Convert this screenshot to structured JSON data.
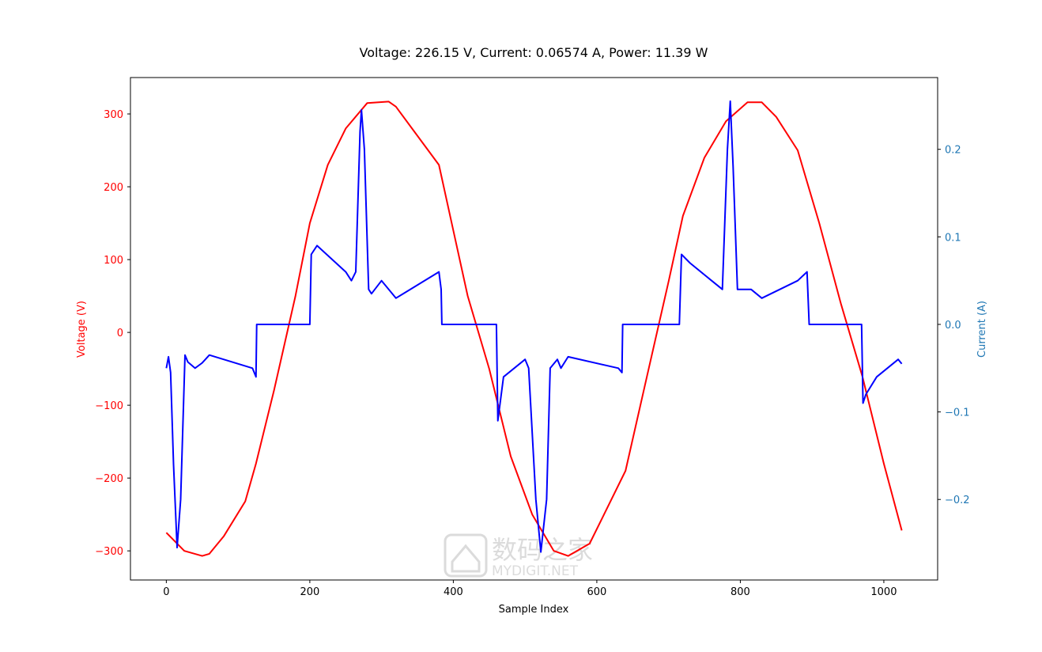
{
  "chart_data": {
    "type": "line",
    "title": "Voltage: 226.15 V, Current: 0.06574 A, Power: 11.39 W",
    "xlabel": "Sample Index",
    "ylabel_left": "Voltage (V)",
    "ylabel_right": "Current (A)",
    "xlim": [
      -50,
      1075
    ],
    "ylim_left": [
      -340,
      350
    ],
    "ylim_right": [
      -0.292,
      0.282
    ],
    "x_ticks": [
      0,
      200,
      400,
      600,
      800,
      1000
    ],
    "x_tick_labels": [
      "0",
      "200",
      "400",
      "600",
      "800",
      "1000"
    ],
    "y_left_ticks": [
      300,
      200,
      100,
      0,
      -100,
      -200,
      -300
    ],
    "y_left_tick_labels": [
      "300",
      "200",
      "100",
      "0",
      "−100",
      "−200",
      "−300"
    ],
    "y_right_ticks": [
      0.2,
      0.1,
      0.0,
      -0.1,
      -0.2
    ],
    "y_right_tick_labels": [
      "0.2",
      "0.1",
      "0.0",
      "−0.1",
      "−0.2"
    ],
    "grid": false,
    "colors": {
      "voltage": "#ff0000",
      "current": "#0000ff",
      "right_axis": "#1f77b4"
    },
    "series": [
      {
        "axis": "left",
        "x": [
          0,
          25,
          50,
          60,
          80,
          110,
          125,
          150,
          180,
          200,
          225,
          250,
          280,
          310,
          320,
          350,
          380,
          400,
          420,
          450,
          480,
          510,
          540,
          560,
          590,
          610,
          640,
          670,
          700,
          720,
          750,
          780,
          810,
          830,
          850,
          880,
          910,
          940,
          970,
          1000,
          1025
        ],
        "values": [
          -275,
          -300,
          -307,
          -304,
          -280,
          -232,
          -180,
          -80,
          50,
          150,
          230,
          280,
          315,
          317,
          310,
          270,
          230,
          140,
          50,
          -50,
          -170,
          -250,
          -300,
          -307,
          -290,
          -250,
          -190,
          -60,
          70,
          160,
          240,
          290,
          316,
          316,
          296,
          250,
          150,
          40,
          -60,
          -180,
          -272
        ]
      },
      {
        "axis": "right",
        "x": [
          0,
          3,
          6,
          10,
          15,
          20,
          26,
          30,
          40,
          50,
          60,
          120,
          125,
          126,
          200,
          202,
          210,
          250,
          258,
          264,
          270,
          272,
          276,
          282,
          286,
          300,
          320,
          380,
          383,
          384,
          460,
          462,
          470,
          500,
          505,
          515,
          522,
          530,
          535,
          545,
          550,
          560,
          630,
          635,
          636,
          715,
          718,
          730,
          760,
          775,
          782,
          786,
          790,
          796,
          800,
          815,
          830,
          880,
          893,
          896,
          969,
          971,
          975,
          990,
          1020,
          1025
        ],
        "values": [
          -0.05,
          -0.037,
          -0.055,
          -0.16,
          -0.255,
          -0.2,
          -0.035,
          -0.043,
          -0.05,
          -0.044,
          -0.035,
          -0.05,
          -0.06,
          0.0,
          0.0,
          0.08,
          0.09,
          0.06,
          0.05,
          0.06,
          0.22,
          0.245,
          0.2,
          0.04,
          0.035,
          0.05,
          0.03,
          0.06,
          0.04,
          0.0,
          0.0,
          -0.11,
          -0.06,
          -0.04,
          -0.05,
          -0.2,
          -0.26,
          -0.2,
          -0.05,
          -0.04,
          -0.05,
          -0.037,
          -0.05,
          -0.055,
          0.0,
          0.0,
          0.08,
          0.07,
          0.05,
          0.04,
          0.2,
          0.255,
          0.18,
          0.04,
          0.04,
          0.04,
          0.03,
          0.05,
          0.06,
          0.0,
          0.0,
          -0.09,
          -0.08,
          -0.06,
          -0.04,
          -0.045
        ]
      }
    ]
  },
  "watermark": {
    "logo_text": "数码之家",
    "site_text": "MYDIGIT.NET"
  }
}
